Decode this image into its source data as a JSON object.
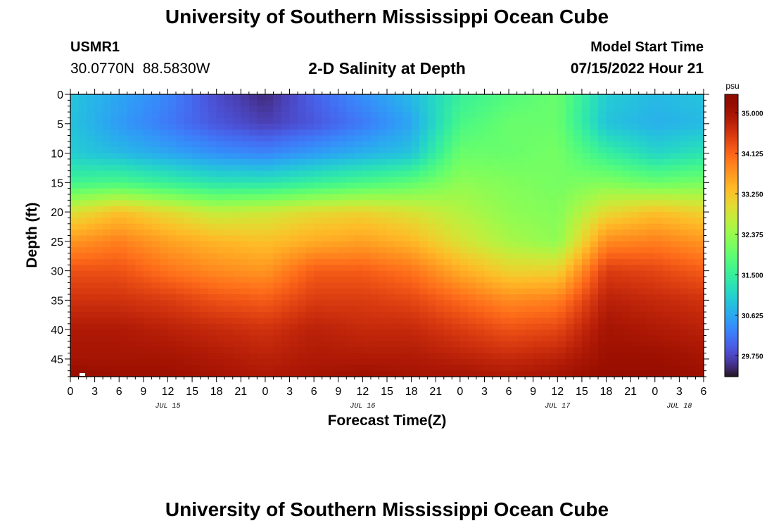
{
  "title": "University of Southern Mississippi Ocean Cube",
  "footer_title": "University of Southern Mississippi Ocean Cube",
  "station": {
    "id": "USMR1",
    "lat": "30.0770N",
    "lon": "88.5830W"
  },
  "subtitle": "2-D Salinity at Depth",
  "model_start": {
    "label": "Model Start Time",
    "value": "07/15/2022 Hour 21"
  },
  "chart_data": {
    "type": "heatmap",
    "title": "2-D Salinity at Depth",
    "xlabel": "Forecast Time(Z)",
    "ylabel": "Depth (ft)",
    "colorbar_unit": "psu",
    "x_tick_labels": [
      "0",
      "3",
      "6",
      "9",
      "12",
      "15",
      "18",
      "21",
      "0",
      "3",
      "6",
      "9",
      "12",
      "15",
      "18",
      "21",
      "0",
      "3",
      "6",
      "9",
      "12",
      "15",
      "18",
      "21",
      "0",
      "3",
      "6"
    ],
    "date_labels": [
      {
        "label": "JUL 15",
        "tick_index": 4
      },
      {
        "label": "JUL 16",
        "tick_index": 12
      },
      {
        "label": "JUL 17",
        "tick_index": 20
      },
      {
        "label": "JUL 18",
        "tick_index": 25
      }
    ],
    "y_tick_labels": [
      "0",
      "5",
      "10",
      "15",
      "20",
      "25",
      "30",
      "35",
      "40",
      "45"
    ],
    "y_ticks": [
      0,
      5,
      10,
      15,
      20,
      25,
      30,
      35,
      40,
      45
    ],
    "ylim": [
      0,
      48
    ],
    "xlim_hours": [
      0,
      78
    ],
    "colorbar_ticks": [
      "35.000",
      "34.125",
      "33.250",
      "32.375",
      "31.500",
      "30.625",
      "29.750"
    ],
    "colorbar_values": [
      35.0,
      34.125,
      33.25,
      32.375,
      31.5,
      30.625,
      29.75
    ],
    "color_range": [
      29.3,
      35.4
    ],
    "grid": {
      "x_hours": [
        0,
        6,
        12,
        18,
        24,
        30,
        36,
        42,
        48,
        54,
        60,
        66,
        72,
        78
      ],
      "depths_ft": [
        0,
        5,
        10,
        15,
        20,
        25,
        30,
        35,
        40,
        45,
        48
      ],
      "salinity_psu": [
        [
          30.9,
          30.9,
          31.0,
          31.6,
          32.9,
          33.7,
          34.3,
          34.6,
          34.9,
          35.0,
          35.2
        ],
        [
          30.6,
          30.5,
          30.8,
          31.7,
          33.3,
          33.9,
          34.3,
          34.6,
          34.9,
          35.0,
          35.1
        ],
        [
          30.3,
          30.2,
          30.6,
          31.5,
          33.0,
          33.6,
          34.0,
          34.5,
          34.8,
          35.0,
          35.1
        ],
        [
          29.8,
          29.9,
          30.4,
          31.3,
          32.7,
          33.4,
          33.8,
          34.3,
          34.7,
          34.9,
          35.0
        ],
        [
          29.5,
          29.7,
          30.3,
          31.3,
          32.8,
          33.3,
          33.7,
          34.2,
          34.6,
          34.8,
          34.9
        ],
        [
          30.0,
          29.9,
          30.5,
          31.5,
          33.0,
          33.5,
          34.2,
          34.5,
          34.8,
          34.9,
          35.0
        ],
        [
          30.4,
          30.2,
          30.7,
          31.7,
          33.1,
          33.6,
          34.2,
          34.5,
          34.7,
          34.9,
          35.1
        ],
        [
          30.8,
          30.6,
          30.9,
          31.9,
          32.9,
          33.4,
          34.0,
          34.4,
          34.7,
          34.9,
          35.0
        ],
        [
          31.5,
          31.7,
          32.0,
          32.3,
          32.6,
          32.9,
          33.5,
          34.1,
          34.5,
          34.8,
          35.0
        ],
        [
          31.8,
          32.0,
          32.0,
          32.2,
          32.3,
          32.5,
          33.1,
          33.8,
          34.3,
          34.7,
          34.9
        ],
        [
          32.0,
          32.0,
          32.1,
          32.1,
          32.2,
          32.3,
          33.1,
          33.9,
          34.4,
          34.8,
          35.0
        ],
        [
          31.0,
          30.9,
          31.5,
          32.2,
          33.0,
          33.8,
          34.5,
          34.8,
          35.0,
          35.1,
          35.2
        ],
        [
          30.8,
          30.7,
          31.1,
          32.0,
          33.3,
          33.9,
          34.4,
          34.7,
          34.9,
          35.1,
          35.2
        ],
        [
          30.9,
          30.8,
          31.3,
          32.1,
          33.1,
          33.7,
          34.2,
          34.6,
          34.8,
          35.0,
          35.1
        ]
      ]
    },
    "marker_note": "small white tick near bottom-left"
  }
}
